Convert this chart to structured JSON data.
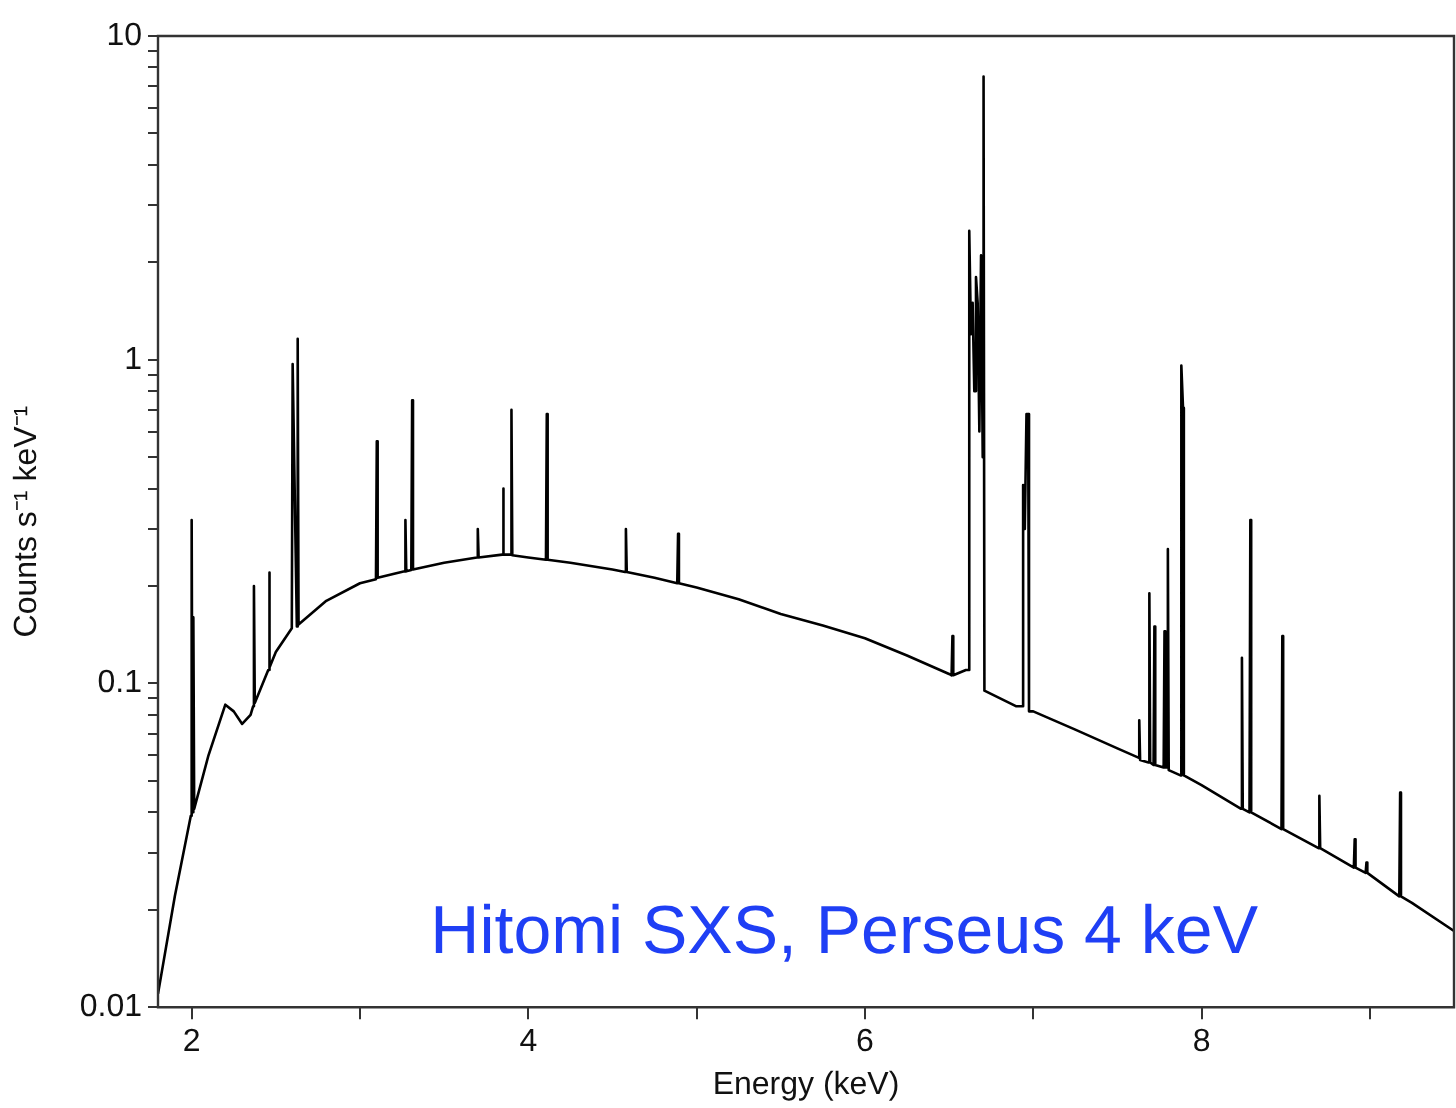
{
  "chart_data": {
    "type": "line",
    "xlabel": "Energy (keV)",
    "ylabel": "Counts s⁻¹ keV⁻¹",
    "log": "y",
    "grid": false,
    "legend": false,
    "marker": "none",
    "xlim": [
      1.8,
      9.5
    ],
    "ylim": [
      0.01,
      10
    ],
    "xticks": [
      2,
      {
        "value": 3,
        "label": null
      },
      4,
      {
        "value": 5,
        "label": null
      },
      6,
      {
        "value": 7,
        "label": null
      },
      8,
      {
        "value": 9,
        "label": null
      }
    ],
    "yticks": [
      0.01,
      {
        "value": 0.02,
        "label": null
      },
      {
        "value": 0.03,
        "label": null
      },
      {
        "value": 0.04,
        "label": null
      },
      {
        "value": 0.05,
        "label": null
      },
      {
        "value": 0.06,
        "label": null
      },
      {
        "value": 0.07,
        "label": null
      },
      {
        "value": 0.08,
        "label": null
      },
      {
        "value": 0.09,
        "label": null
      },
      0.1,
      {
        "value": 0.2,
        "label": null
      },
      {
        "value": 0.3,
        "label": null
      },
      {
        "value": 0.4,
        "label": null
      },
      {
        "value": 0.5,
        "label": null
      },
      {
        "value": 0.6,
        "label": null
      },
      {
        "value": 0.7,
        "label": null
      },
      {
        "value": 0.8,
        "label": null
      },
      {
        "value": 0.9,
        "label": null
      },
      1,
      {
        "value": 2,
        "label": null
      },
      {
        "value": 3,
        "label": null
      },
      {
        "value": 4,
        "label": null
      },
      {
        "value": 5,
        "label": null
      },
      {
        "value": 6,
        "label": null
      },
      {
        "value": 7,
        "label": null
      },
      {
        "value": 8,
        "label": null
      },
      {
        "value": 9,
        "label": null
      },
      10
    ],
    "annotations": [
      "Hitomi SXS, Perseus 4 keV"
    ],
    "series": [
      {
        "color": "#000000",
        "x": [
          1.8,
          1.9,
          1.995,
          2.0,
          2.005,
          2.01,
          2.015,
          2.1,
          2.2,
          2.25,
          2.3,
          2.35,
          2.365,
          2.37,
          2.375,
          2.455,
          2.46,
          2.465,
          2.5,
          2.595,
          2.6,
          2.625,
          2.63,
          2.635,
          2.8,
          3.0,
          3.095,
          3.1,
          3.105,
          3.265,
          3.27,
          3.275,
          3.305,
          3.31,
          3.315,
          3.5,
          3.695,
          3.7,
          3.705,
          3.845,
          3.85,
          3.855,
          3.895,
          3.9,
          3.905,
          4.0,
          4.105,
          4.11,
          4.115,
          4.25,
          4.5,
          4.575,
          4.58,
          4.585,
          4.75,
          4.885,
          4.89,
          4.895,
          5.0,
          5.25,
          5.5,
          5.75,
          6.0,
          6.25,
          6.5,
          6.515,
          6.52,
          6.525,
          6.6,
          6.615,
          6.62,
          6.63,
          6.64,
          6.65,
          6.66,
          6.67,
          6.68,
          6.69,
          6.7,
          6.705,
          6.71,
          6.9,
          6.935,
          6.94,
          6.95,
          6.96,
          6.97,
          6.975,
          7.0,
          7.25,
          7.5,
          7.625,
          7.63,
          7.635,
          7.685,
          7.69,
          7.695,
          7.715,
          7.72,
          7.725,
          7.775,
          7.78,
          7.785,
          7.795,
          7.8,
          7.805,
          7.875,
          7.88,
          7.89,
          7.895,
          8.0,
          8.235,
          8.24,
          8.245,
          8.285,
          8.29,
          8.295,
          8.475,
          8.48,
          8.485,
          8.695,
          8.7,
          8.705,
          8.905,
          8.91,
          8.915,
          8.975,
          8.98,
          8.985,
          9.175,
          9.18,
          9.185,
          9.25,
          9.5
        ],
        "values": [
          0.011,
          0.022,
          0.039,
          0.32,
          0.04,
          0.16,
          0.041,
          0.06,
          0.086,
          0.082,
          0.075,
          0.08,
          0.085,
          0.2,
          0.087,
          0.11,
          0.22,
          0.112,
          0.125,
          0.148,
          0.97,
          0.15,
          1.16,
          0.152,
          0.18,
          0.204,
          0.21,
          0.56,
          0.212,
          0.222,
          0.32,
          0.222,
          0.224,
          0.75,
          0.225,
          0.236,
          0.245,
          0.3,
          0.245,
          0.25,
          0.4,
          0.25,
          0.25,
          0.7,
          0.249,
          0.245,
          0.241,
          0.68,
          0.241,
          0.236,
          0.225,
          0.221,
          0.3,
          0.221,
          0.212,
          0.204,
          0.29,
          0.204,
          0.198,
          0.182,
          0.164,
          0.151,
          0.138,
          0.122,
          0.107,
          0.106,
          0.14,
          0.106,
          0.11,
          0.11,
          2.5,
          1.2,
          1.5,
          0.8,
          1.8,
          1.5,
          0.6,
          2.1,
          0.5,
          7.5,
          0.095,
          0.085,
          0.085,
          0.41,
          0.3,
          0.68,
          0.68,
          0.082,
          0.082,
          0.072,
          0.063,
          0.059,
          0.077,
          0.058,
          0.057,
          0.19,
          0.057,
          0.056,
          0.15,
          0.056,
          0.055,
          0.145,
          0.055,
          0.055,
          0.26,
          0.054,
          0.052,
          0.96,
          0.71,
          0.052,
          0.0485,
          0.041,
          0.12,
          0.041,
          0.04,
          0.32,
          0.04,
          0.0355,
          0.14,
          0.0355,
          0.031,
          0.045,
          0.031,
          0.027,
          0.033,
          0.027,
          0.026,
          0.028,
          0.026,
          0.022,
          0.046,
          0.022,
          0.021,
          0.0172
        ]
      }
    ]
  }
}
